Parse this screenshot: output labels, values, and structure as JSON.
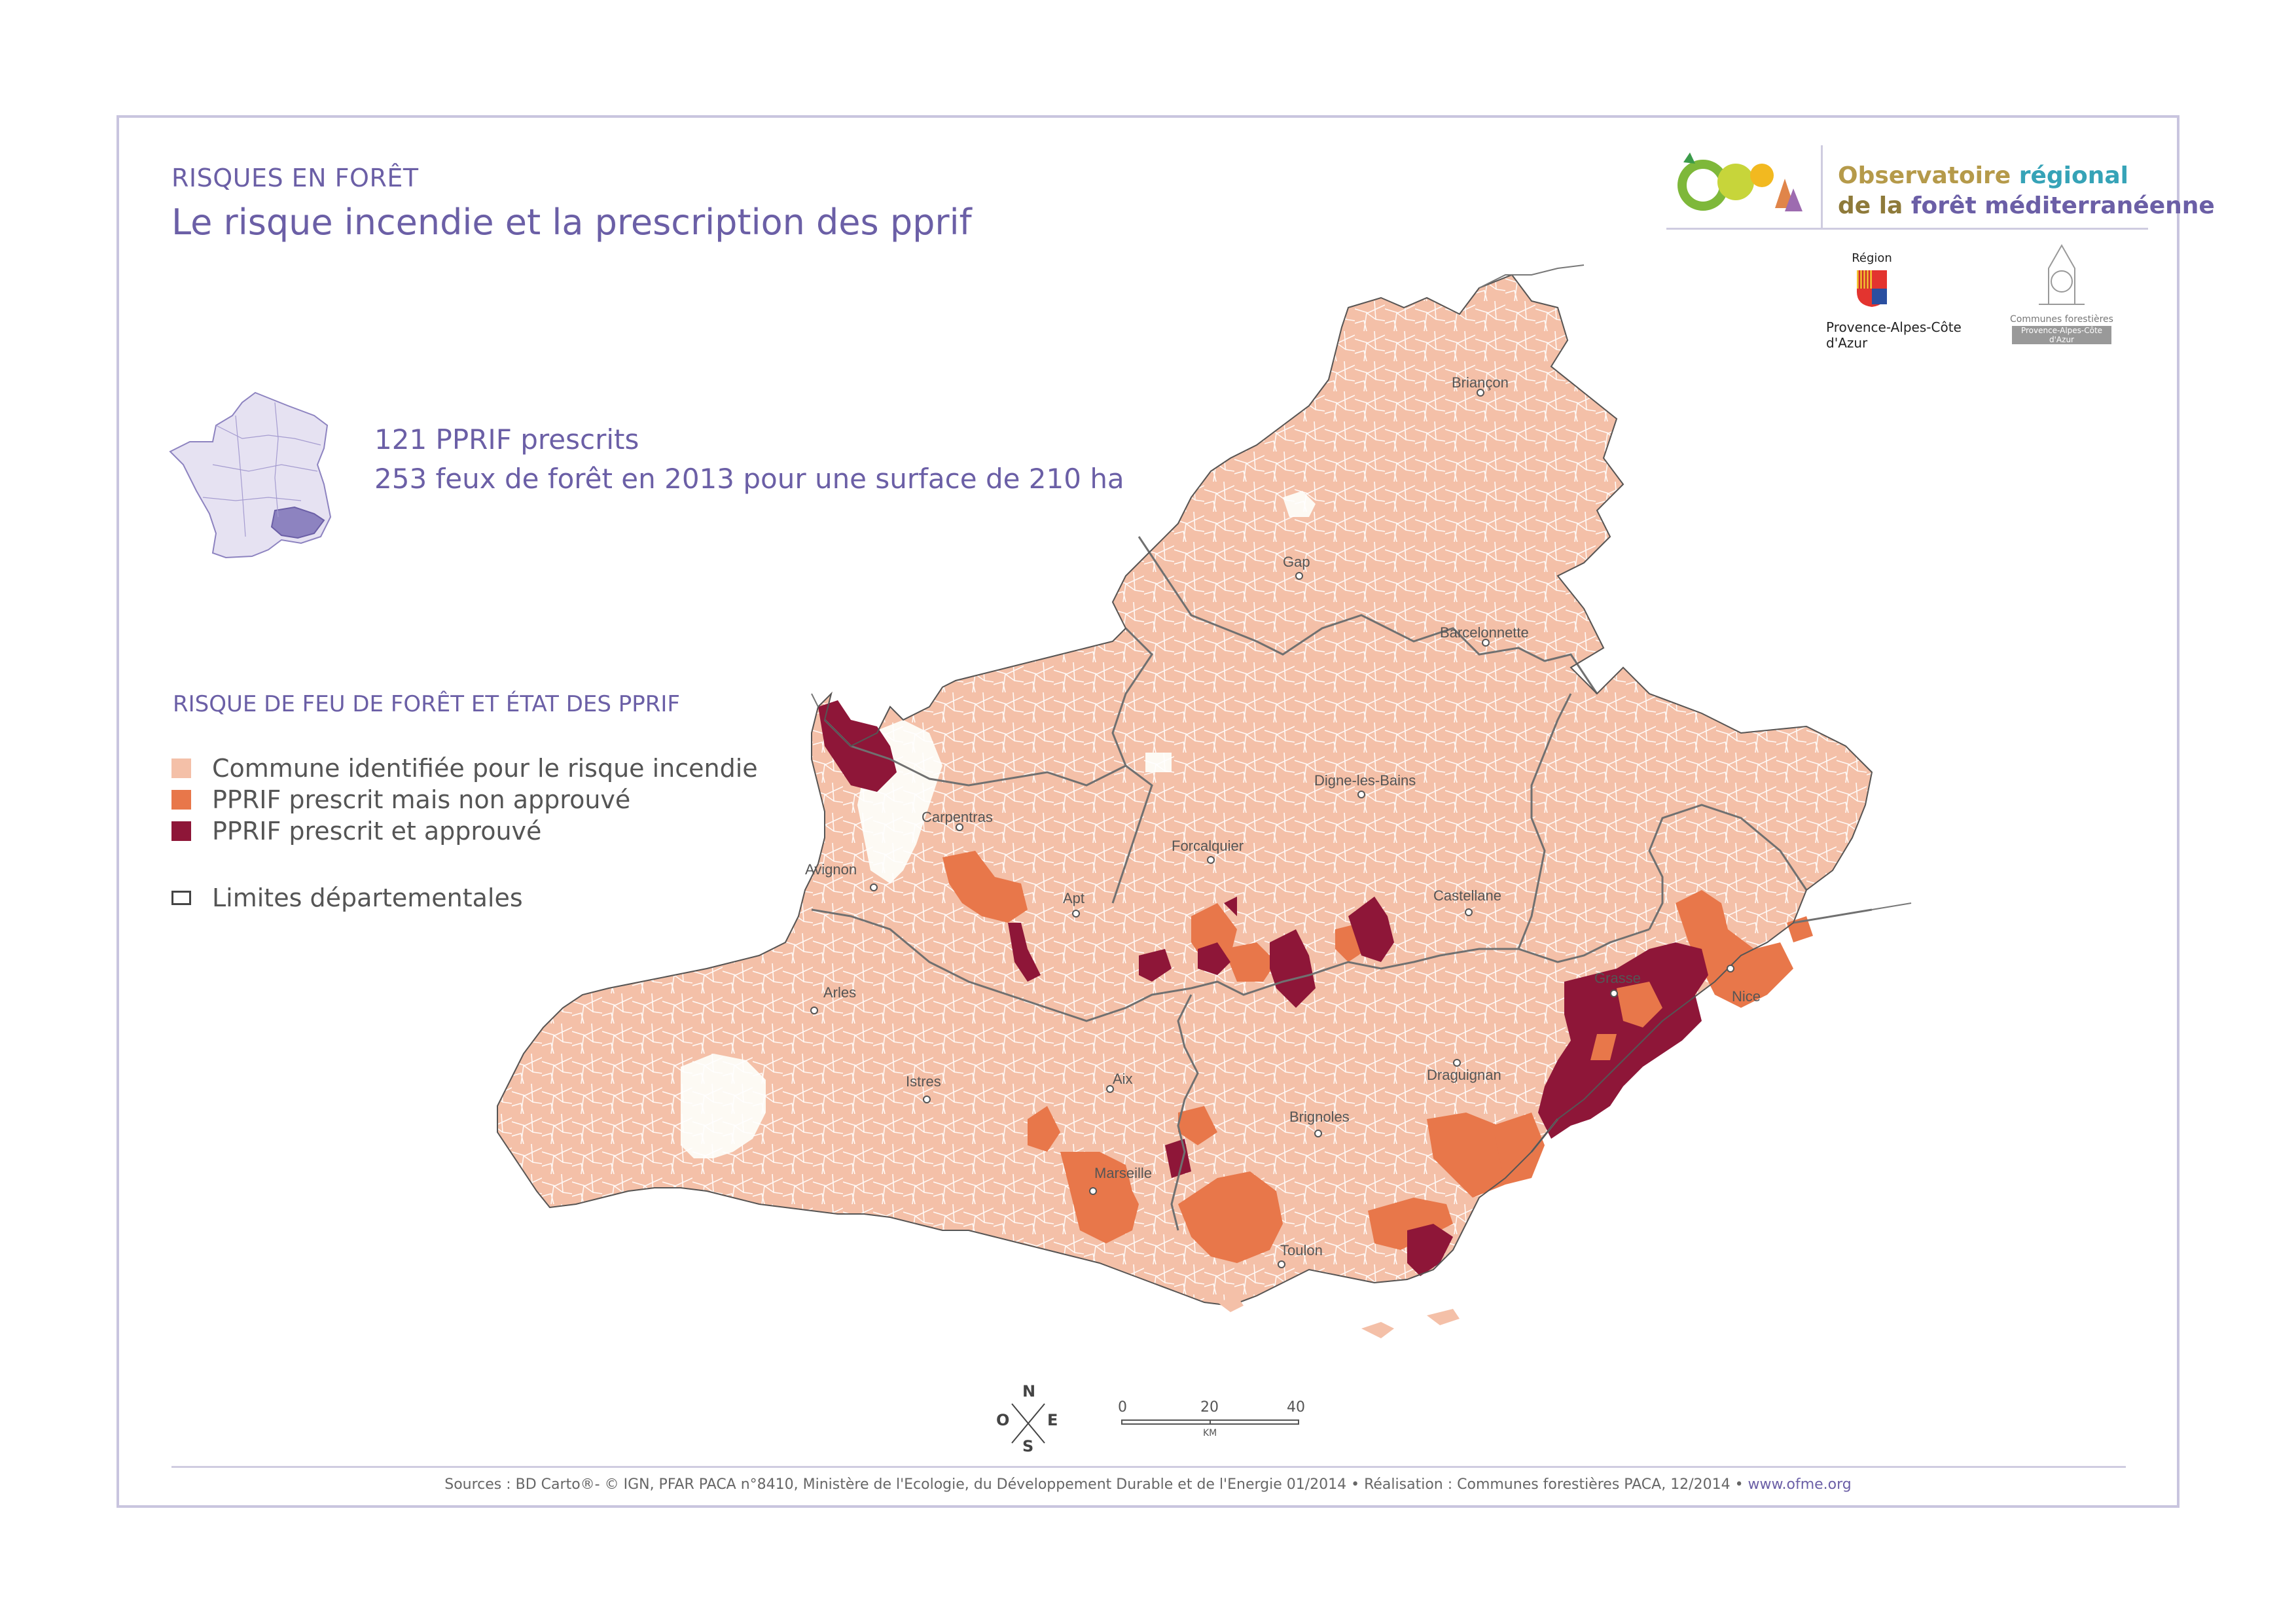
{
  "header": {
    "category": "RISQUES EN FORÊT",
    "title": "Le risque incendie et la prescription des pprif"
  },
  "stats": {
    "line1": "121 PPRIF prescrits",
    "line2": "253 feux de forêt en 2013 pour une surface de 210 ha"
  },
  "legend": {
    "title": "RISQUE DE FEU DE FORÊT ET ÉTAT DES PPRIF",
    "items": [
      {
        "label": "Commune identifiée pour le risque incendie",
        "color": "#f4c0a8"
      },
      {
        "label": "PPRIF prescrit mais non approuvé",
        "color": "#e8774a"
      },
      {
        "label": "PPRIF prescrit et approuvé",
        "color": "#8e1638"
      },
      {
        "label": "Limites départementales",
        "color": "#ffffff"
      }
    ]
  },
  "logos": {
    "observatoire_line1_a": "Observatoire ",
    "observatoire_line1_b": "régional",
    "observatoire_line2_a": "de la ",
    "observatoire_line2_b": "forêt méditerranéenne",
    "region_label": "Région",
    "region_name": "Provence-Alpes-Côte d'Azur",
    "cf_label": "Communes forestières",
    "cf_sub": "Provence-Alpes-Côte d'Azur"
  },
  "cities": [
    {
      "name": "Briançon"
    },
    {
      "name": "Gap"
    },
    {
      "name": "Barcelonnette"
    },
    {
      "name": "Digne-les-Bains"
    },
    {
      "name": "Forcalquier"
    },
    {
      "name": "Carpentras"
    },
    {
      "name": "Avignon"
    },
    {
      "name": "Apt"
    },
    {
      "name": "Castellane"
    },
    {
      "name": "Grasse"
    },
    {
      "name": "Nice"
    },
    {
      "name": "Arles"
    },
    {
      "name": "Istres"
    },
    {
      "name": "Aix"
    },
    {
      "name": "Draguignan"
    },
    {
      "name": "Brignoles"
    },
    {
      "name": "Marseille"
    },
    {
      "name": "Toulon"
    }
  ],
  "scale": {
    "ticks": [
      "0",
      "20",
      "40"
    ],
    "unit": "KM"
  },
  "compass": {
    "n": "N",
    "s": "S",
    "e": "E",
    "w": "O"
  },
  "footer": {
    "sources": "Sources : BD Carto®- © IGN, PFAR PACA n°8410, Ministère de l'Ecologie, du Développement Durable et de l'Energie 01/2014 • Réalisation : Communes forestières PACA, 12/2014 • ",
    "link": "www.ofme.org"
  },
  "colors": {
    "commune": "#f4c0a8",
    "non_approuve": "#e8774a",
    "approuve": "#8e1638",
    "accent": "#6b5fa6"
  }
}
